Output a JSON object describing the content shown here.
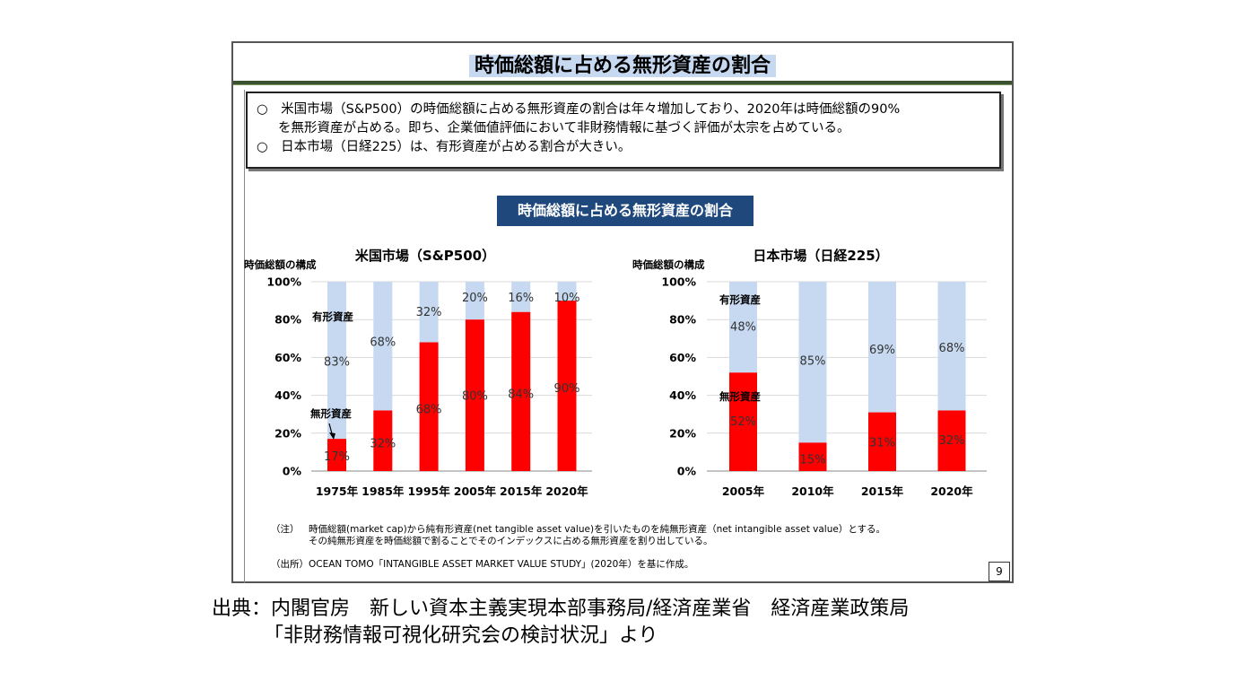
{
  "slide": {
    "title": "時価総額に占める無形資産の割合",
    "summary_lines": [
      "○　米国市場（S&P500）の時価総額に占める無形資産の割合は年々増加しており、2020年は時価総額の90%",
      "を無形資産が占める。即ち、企業価値評価において非財務情報に基づく評価が太宗を占めている。",
      "○　日本市場（日経225）は、有形資産が占める割合が大きい。"
    ],
    "banner": "時価総額に占める無形資産の割合",
    "notes": {
      "note_label": "（注）",
      "note_line1": "時価総額(market cap)から純有形資産(net tangible asset value)を引いたものを純無形資産（net intangible asset value）とする。",
      "note_line2": "その純無形資産を時価総額で割ることでそのインデックスに占める無形資産を割り出している。",
      "source_label": "（出所）",
      "source_text": "OCEAN TOMO「INTANGIBLE ASSET MARKET VALUE STUDY」(2020年）を基に作成。"
    },
    "page_number": "9"
  },
  "caption": {
    "line1": "出典：内閣官房　新しい資本主義実現本部事務局/経済産業省　経済産業政策局",
    "line2": "「非財務情報可視化研究会の検討状況」より"
  },
  "colors": {
    "intangible": "#ff0000",
    "tangible": "#c6d9f1",
    "banner": "#1f497d"
  },
  "chart_data": [
    {
      "type": "bar",
      "stacked": true,
      "title": "米国市場（S&P500）",
      "ylabel": "時価総額の構成",
      "ylim": [
        0,
        100
      ],
      "yticks": [
        "0%",
        "20%",
        "40%",
        "60%",
        "80%",
        "100%"
      ],
      "grid": true,
      "categories": [
        "1975年",
        "1985年",
        "1995年",
        "2005年",
        "2015年",
        "2020年"
      ],
      "series": [
        {
          "name": "無形資産",
          "values": [
            17,
            32,
            68,
            80,
            84,
            90
          ],
          "labels": [
            "17%",
            "32%",
            "68%",
            "80%",
            "84%",
            "90%"
          ]
        },
        {
          "name": "有形資産",
          "values": [
            83,
            68,
            32,
            20,
            16,
            10
          ],
          "labels": [
            "83%",
            "68%",
            "32%",
            "20%",
            "16%",
            "10%"
          ]
        }
      ]
    },
    {
      "type": "bar",
      "stacked": true,
      "title": "日本市場（日経225）",
      "ylabel": "時価総額の構成",
      "ylim": [
        0,
        100
      ],
      "yticks": [
        "0%",
        "20%",
        "40%",
        "60%",
        "80%",
        "100%"
      ],
      "grid": true,
      "categories": [
        "2005年",
        "2010年",
        "2015年",
        "2020年"
      ],
      "series": [
        {
          "name": "無形資産",
          "values": [
            52,
            15,
            31,
            32
          ],
          "labels": [
            "52%",
            "15%",
            "31%",
            "32%"
          ]
        },
        {
          "name": "有形資産",
          "values": [
            48,
            85,
            69,
            68
          ],
          "labels": [
            "48%",
            "85%",
            "69%",
            "68%"
          ]
        }
      ]
    }
  ]
}
